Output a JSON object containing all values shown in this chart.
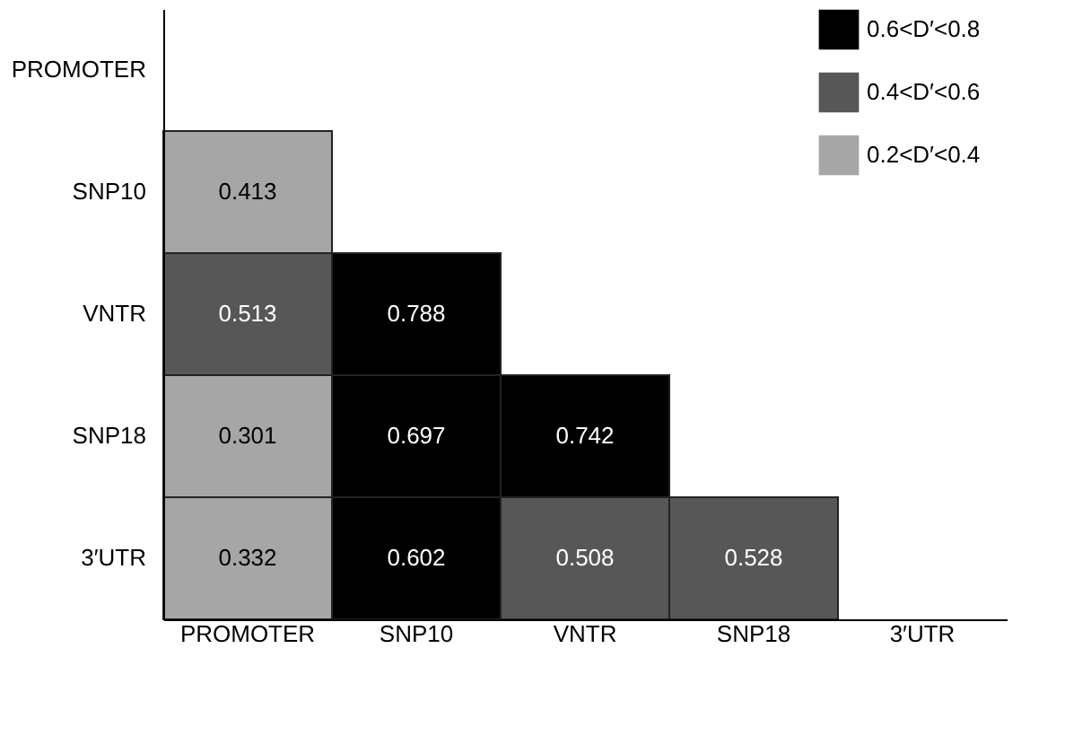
{
  "chart_data": {
    "type": "heatmap",
    "categories": [
      "PROMOTER",
      "SNP10",
      "VNTR",
      "SNP18",
      "3′UTR"
    ],
    "y_categories": [
      "PROMOTER",
      "SNP10",
      "VNTR",
      "SNP18",
      "3′UTR"
    ],
    "cells": [
      [
        null,
        null,
        null,
        null,
        null
      ],
      [
        0.413,
        null,
        null,
        null,
        null
      ],
      [
        0.513,
        0.788,
        null,
        null,
        null
      ],
      [
        0.301,
        0.697,
        0.742,
        null,
        null
      ],
      [
        0.332,
        0.602,
        0.508,
        0.528,
        null
      ]
    ],
    "colors": [
      [
        null,
        null,
        null,
        null,
        null
      ],
      [
        "#a6a6a6",
        null,
        null,
        null,
        null
      ],
      [
        "#575757",
        "#000000",
        null,
        null,
        null
      ],
      [
        "#a6a6a6",
        "#000000",
        "#000000",
        null,
        null
      ],
      [
        "#a6a6a6",
        "#000000",
        "#575757",
        "#575757",
        null
      ]
    ],
    "annotations": [
      "0.6<D′<0.8",
      "0.4<D′<0.6",
      "0.2<D′<0.4"
    ],
    "data_labels": true
  }
}
